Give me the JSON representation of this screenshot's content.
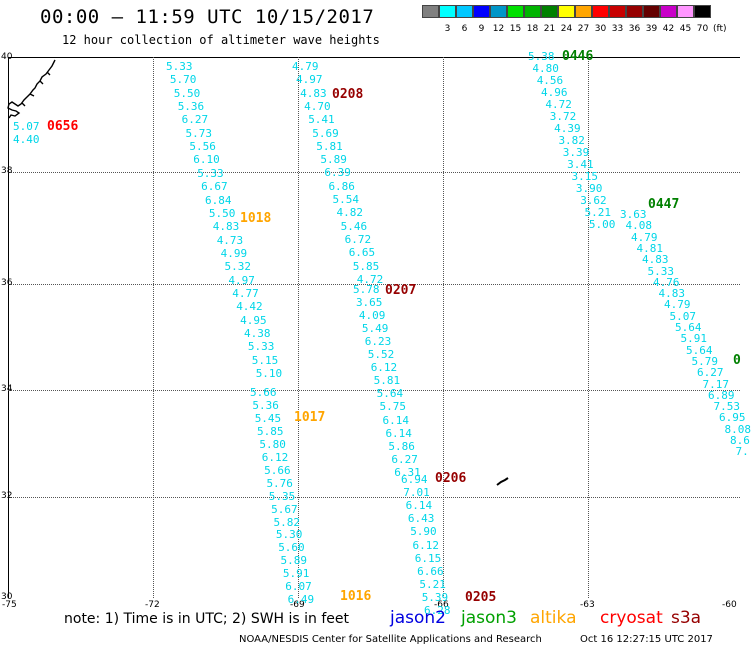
{
  "header": {
    "title": "00:00 – 11:59 UTC 10/15/2017",
    "subtitle": "12 hour collection of altimeter wave heights"
  },
  "legend": {
    "swatches": [
      {
        "label": "",
        "color": "#808080"
      },
      {
        "label": "3",
        "color": "#00ffff"
      },
      {
        "label": "6",
        "color": "#00c8ff"
      },
      {
        "label": "9",
        "color": "#0000ff"
      },
      {
        "label": "12",
        "color": "#0096c8"
      },
      {
        "label": "15",
        "color": "#00e000"
      },
      {
        "label": "18",
        "color": "#00b400"
      },
      {
        "label": "21",
        "color": "#008000"
      },
      {
        "label": "24",
        "color": "#ffff00"
      },
      {
        "label": "27",
        "color": "#ffa500"
      },
      {
        "label": "30",
        "color": "#ff0000"
      },
      {
        "label": "33",
        "color": "#c80000"
      },
      {
        "label": "36",
        "color": "#960000"
      },
      {
        "label": "39",
        "color": "#640000"
      },
      {
        "label": "42",
        "color": "#c800c8"
      },
      {
        "label": "45",
        "color": "#ff96ff"
      },
      {
        "label": "70",
        "color": "#000000"
      }
    ],
    "unit": "(ft)"
  },
  "axes": {
    "lat_labels": [
      "40",
      "38",
      "36",
      "34",
      "32",
      "30"
    ],
    "lon_labels": [
      "-75",
      "-72",
      "-69",
      "-66",
      "-63",
      "-60"
    ]
  },
  "passes": [
    {
      "time": "0656",
      "color": "#ff0000",
      "values": [
        "5.07",
        "4.40"
      ]
    },
    {
      "time": "1018",
      "color": "#ffa500",
      "values": [
        "5.33",
        "5.70",
        "5.50",
        "5.36",
        "6.27",
        "5.73",
        "5.56",
        "6.10",
        "5.33",
        "6.67",
        "6.84",
        "5.50",
        "4.83",
        "4.73",
        "4.99",
        "5.32",
        "4.97",
        "4.77",
        "4.42",
        "4.95",
        "4.38",
        "5.33",
        "5.15",
        "5.10"
      ]
    },
    {
      "time": "1017",
      "color": "#ffa500",
      "values": [
        "5.66",
        "5.36",
        "5.45",
        "5.85",
        "5.80",
        "6.12",
        "5.66",
        "5.76",
        "5.35",
        "5.67",
        "5.82",
        "5.30",
        "5.60",
        "5.89",
        "5.91",
        "6.07",
        "6.49"
      ]
    },
    {
      "time": "1016",
      "color": "#ffa500",
      "values": []
    },
    {
      "time": "0208",
      "color": "#960000",
      "values": [
        "4.79",
        "4.97",
        "4.83",
        "4.70",
        "5.41",
        "5.69",
        "5.81",
        "5.89",
        "6.39",
        "6.86",
        "5.54",
        "4.82",
        "5.46",
        "6.72",
        "6.65",
        "5.85",
        "4.72"
      ]
    },
    {
      "time": "0207",
      "color": "#960000",
      "values": [
        "5.78",
        "3.65",
        "4.09",
        "5.49",
        "6.23",
        "5.52",
        "6.12",
        "5.81",
        "5.64",
        "5.75",
        "6.14",
        "6.14",
        "5.86",
        "6.27",
        "6.31"
      ]
    },
    {
      "time": "0206",
      "color": "#960000",
      "values": [
        "6.94",
        "7.01",
        "6.14",
        "6.43",
        "5.90",
        "6.12",
        "6.15",
        "6.66",
        "5.21",
        "5.39",
        "6.28"
      ]
    },
    {
      "time": "0205",
      "color": "#960000",
      "values": []
    },
    {
      "time": "0446",
      "color": "#008000",
      "values": [
        "5.38",
        "4.80",
        "4.56",
        "4.96",
        "4.72",
        "3.72",
        "4.39",
        "3.82",
        "3.39",
        "3.41",
        "3.15",
        "3.90",
        "3.62",
        "5.21",
        "5.00"
      ]
    },
    {
      "time": "0447",
      "color": "#008000",
      "values": [
        "3.63",
        "4.08",
        "4.79",
        "4.81",
        "4.83",
        "5.33",
        "4.76",
        "4.83",
        "4.79",
        "5.07",
        "5.64",
        "5.91",
        "5.64",
        "5.79",
        "6.27",
        "7.17",
        "6.89",
        "7.53",
        "6.95",
        "8.08",
        "8.6",
        "7."
      ]
    }
  ],
  "footer": {
    "note": "note: 1) Time is in UTC; 2) SWH is in feet",
    "satellites": [
      {
        "name": "jason2",
        "color": "#0000e0"
      },
      {
        "name": "jason3",
        "color": "#00a000"
      },
      {
        "name": "altika",
        "color": "#ffa500"
      },
      {
        "name": "cryosat",
        "color": "#ff0000"
      },
      {
        "name": "s3a",
        "color": "#960000"
      }
    ],
    "credit": "NOAA/NESDIS Center for Satellite Applications and Research",
    "generated": "Oct 16 12:27:15 UTC 2017"
  },
  "extra_partial": "0"
}
